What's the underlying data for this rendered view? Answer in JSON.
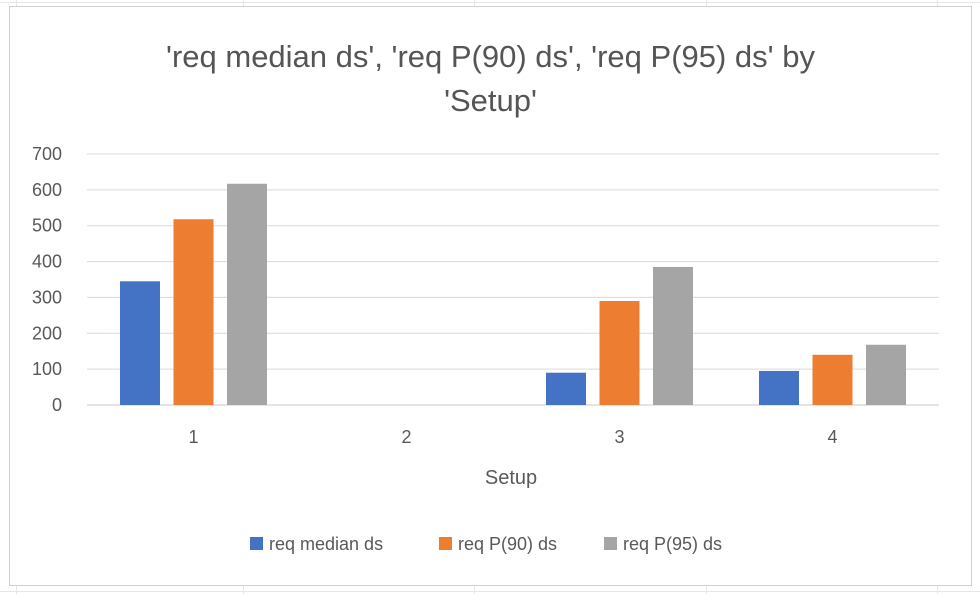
{
  "chart_data": {
    "type": "bar",
    "title": "'req median ds', 'req P(90) ds', 'req P(95) ds' by 'Setup'",
    "xlabel": "Setup",
    "ylabel": "",
    "categories": [
      "1",
      "2",
      "3",
      "4"
    ],
    "ylim": [
      0,
      700
    ],
    "yticks": [
      "0",
      "100",
      "200",
      "300",
      "400",
      "500",
      "600",
      "700"
    ],
    "grid": true,
    "legend_position": "bottom",
    "series": [
      {
        "name": "req median ds",
        "color": "#4472c4",
        "values": [
          345,
          0,
          90,
          95
        ]
      },
      {
        "name": "req P(90) ds",
        "color": "#ed7d31",
        "values": [
          518,
          0,
          290,
          140
        ]
      },
      {
        "name": "req P(95) ds",
        "color": "#a5a5a5",
        "values": [
          617,
          0,
          385,
          168
        ]
      }
    ]
  }
}
